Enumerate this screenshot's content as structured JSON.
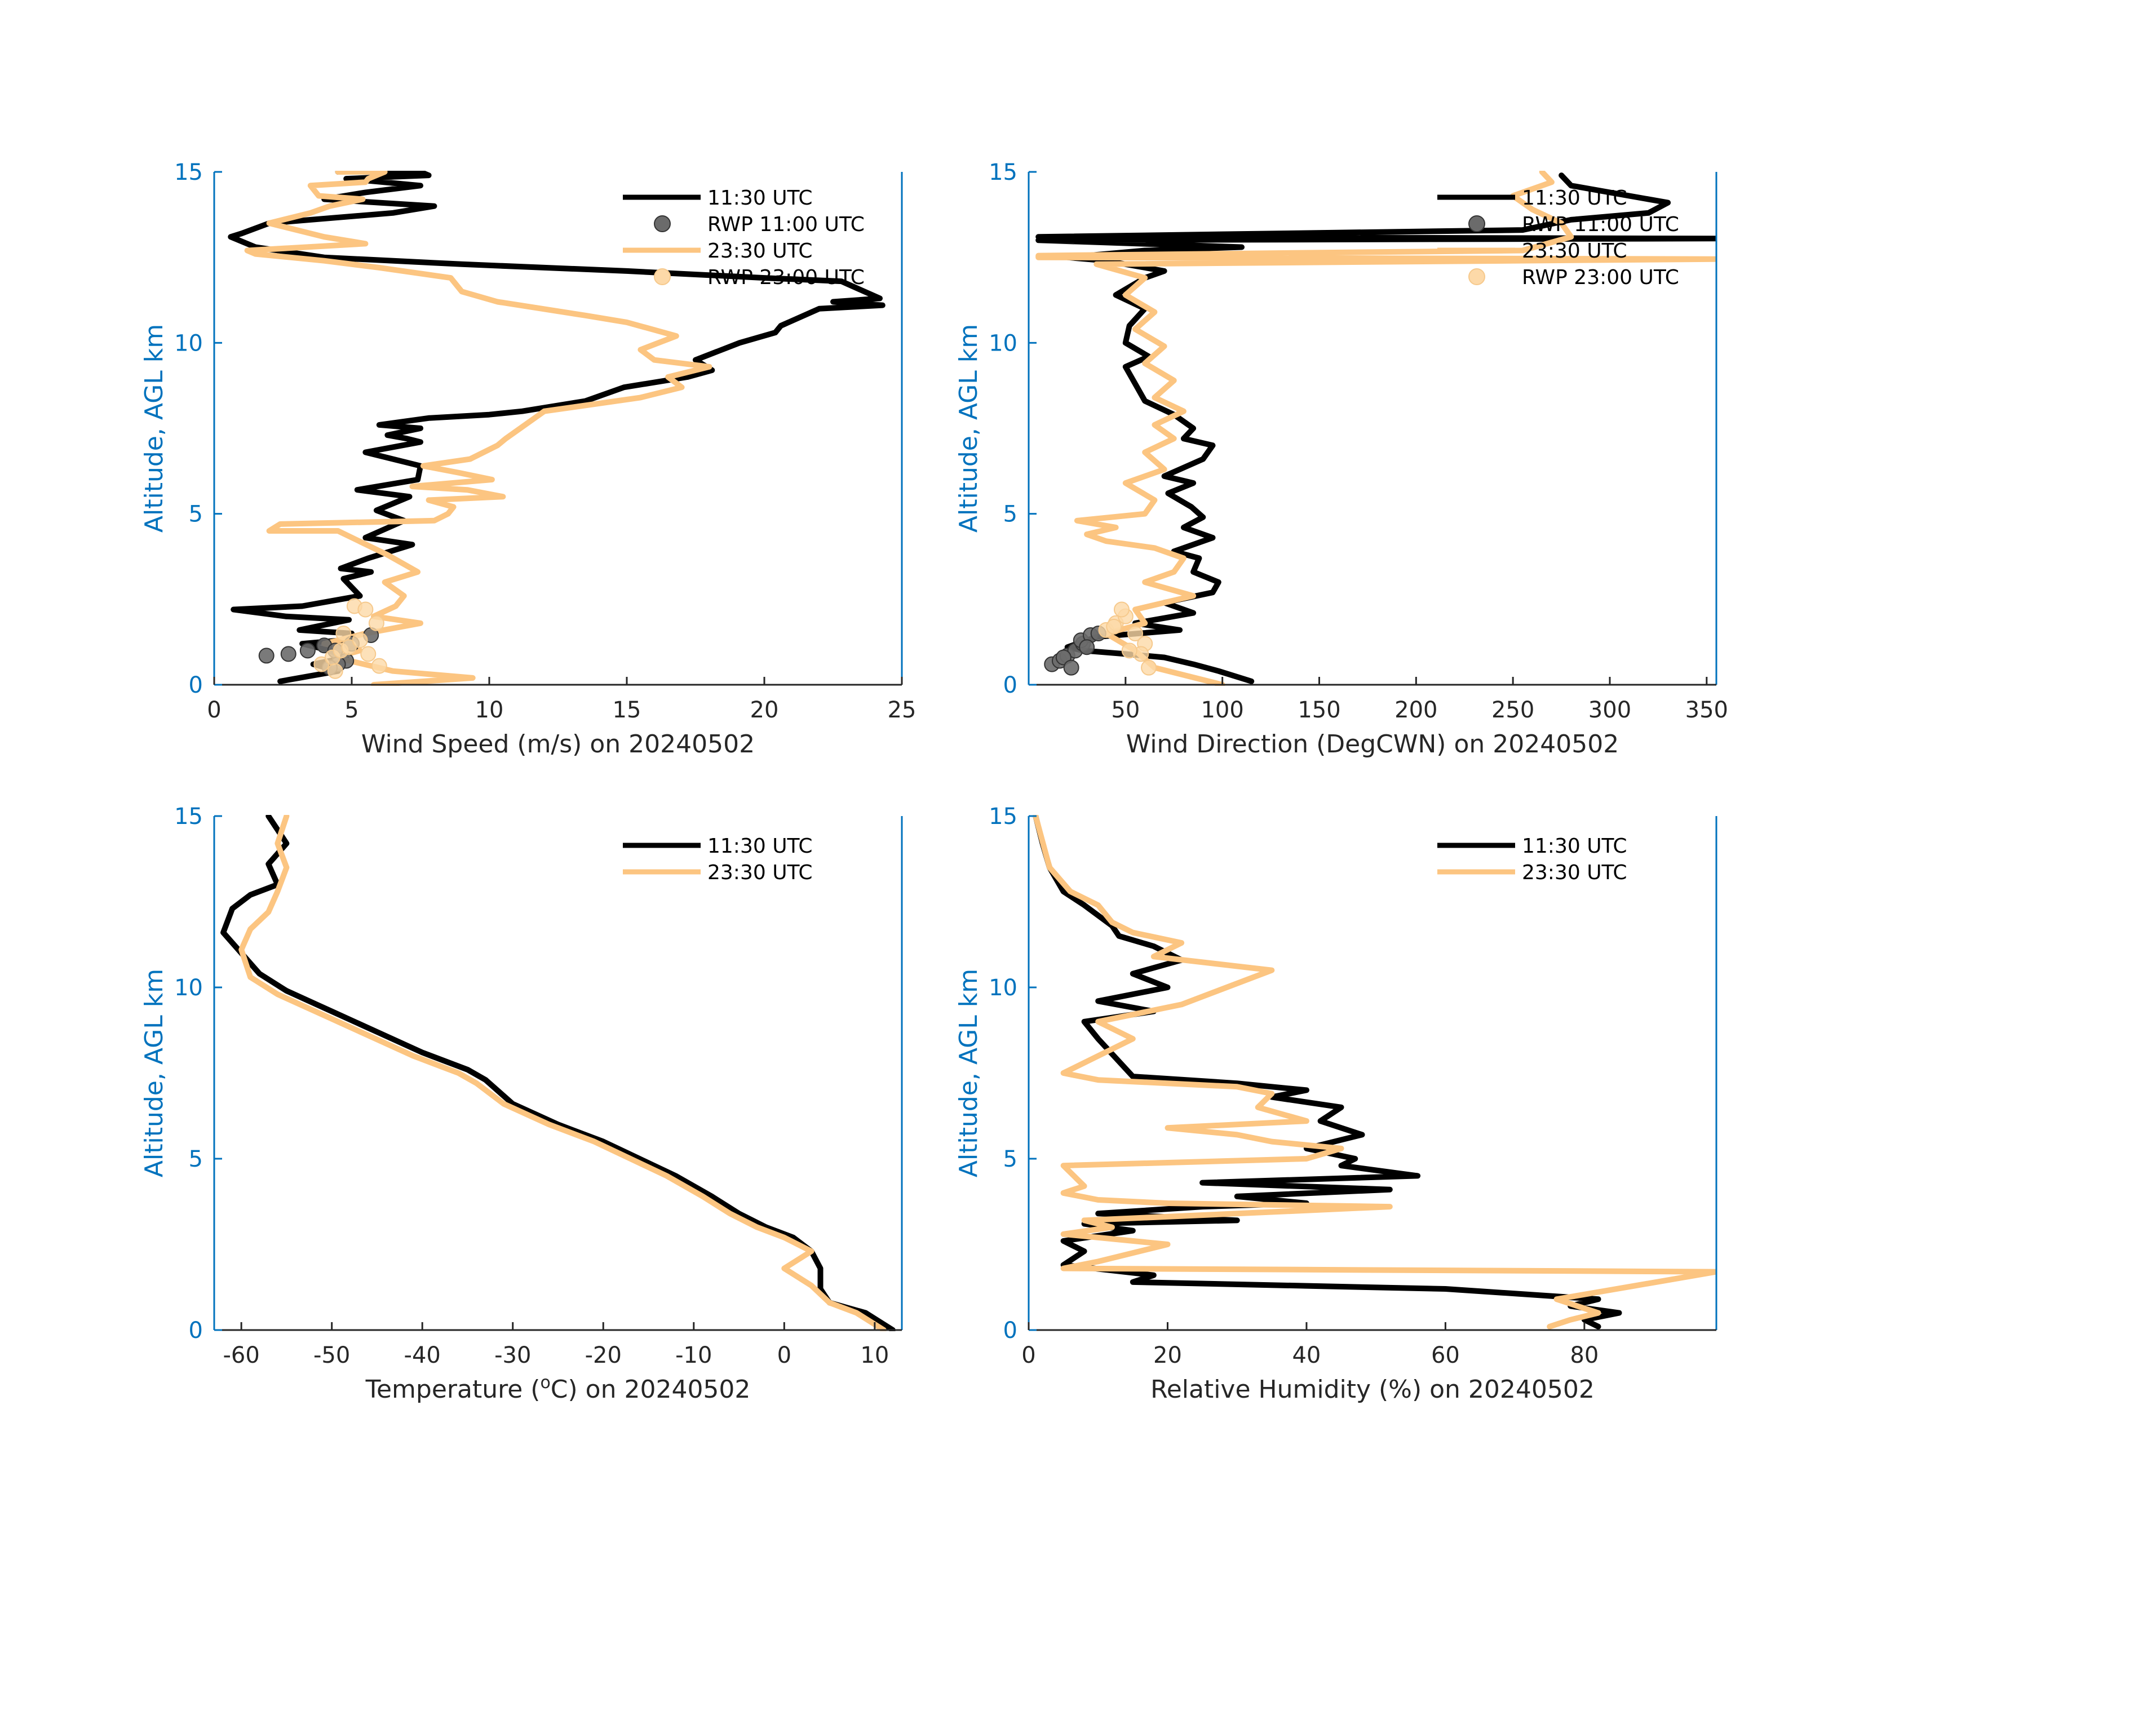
{
  "colors": {
    "background": "#ffffff",
    "axis_blue": "#0072bd",
    "axis_dark": "#262626",
    "series_1130": "#000000",
    "series_2330": "#fcc581",
    "rwp_1100": "#6b6b6b",
    "rwp_2300": "#fdd9a8"
  },
  "chart_data": [
    {
      "type": "line",
      "xlabel": "Wind Speed (m/s) on 20240502",
      "ylabel": "Altitude, AGL km",
      "xlim": [
        0,
        25
      ],
      "ylim": [
        0,
        15
      ],
      "xticks": [
        0,
        5,
        10,
        15,
        20,
        25
      ],
      "xtick_labels": [
        "0",
        "5",
        "10",
        "15",
        "20",
        "25"
      ],
      "yticks": [
        0,
        5,
        10,
        15
      ],
      "ytick_labels": [
        "0",
        "5",
        "10",
        "15"
      ],
      "legend_position": "top-right",
      "legend": [
        "11:30 UTC",
        "RWP 11:00 UTC",
        "23:30 UTC",
        "RWP 23:00 UTC"
      ],
      "series": [
        {
          "name": "11:30 UTC",
          "color": "#000000",
          "x": [
            2.4,
            4.5,
            3.6,
            4.8,
            4.2,
            3.2,
            4.6,
            5.0,
            3.1,
            4.9,
            2.6,
            0.7,
            3.2,
            5.3,
            4.7,
            5.7,
            4.6,
            5.6,
            7.2,
            5.5,
            6.9,
            5.9,
            7.1,
            5.2,
            7.4,
            7.5,
            5.5,
            7.5,
            7.0,
            6.3,
            7.5,
            6.0,
            7.8,
            10.0,
            11.2,
            13.5,
            14.9,
            17.2,
            18.1,
            17.5,
            19.1,
            20.4,
            20.6,
            22.0,
            24.3,
            22.5,
            24.2,
            22.8,
            20.0,
            15.0,
            9.0,
            4.0,
            1.5,
            0.6,
            1.0,
            2.0,
            6.5,
            8.0,
            4.0,
            5.5,
            7.5,
            4.8,
            7.8,
            7.5,
            4.5
          ],
          "y": [
            0.1,
            0.4,
            0.6,
            0.8,
            1.0,
            1.2,
            1.3,
            1.5,
            1.6,
            1.9,
            2.0,
            2.2,
            2.3,
            2.6,
            3.1,
            3.3,
            3.4,
            3.7,
            4.1,
            4.3,
            4.8,
            5.1,
            5.5,
            5.7,
            6.0,
            6.4,
            6.8,
            7.1,
            7.2,
            7.3,
            7.5,
            7.6,
            7.8,
            7.9,
            8.0,
            8.3,
            8.7,
            9.0,
            9.2,
            9.5,
            10.0,
            10.3,
            10.5,
            11.0,
            11.1,
            11.2,
            11.3,
            11.8,
            11.9,
            12.1,
            12.3,
            12.5,
            12.8,
            13.1,
            13.2,
            13.5,
            13.8,
            14.0,
            14.2,
            14.4,
            14.6,
            14.8,
            14.9,
            15.0,
            15.0
          ]
        },
        {
          "name": "23:30 UTC",
          "color": "#fcc581",
          "x": [
            5.8,
            9.4,
            6.5,
            4.4,
            5.3,
            4.0,
            5.5,
            7.5,
            5.8,
            6.6,
            6.9,
            6.2,
            7.4,
            6.3,
            4.5,
            2.0,
            2.4,
            8.0,
            8.5,
            8.7,
            7.8,
            10.5,
            9.2,
            7.2,
            10.1,
            8.9,
            7.6,
            9.3,
            10.3,
            10.6,
            12.0,
            15.5,
            17.0,
            16.5,
            18.0,
            16.0,
            15.5,
            16.8,
            15.0,
            13.5,
            10.3,
            9.0,
            8.6,
            6.0,
            4.0,
            1.5,
            1.2,
            5.5,
            4.0,
            2.0,
            3.5,
            4.2,
            5.4,
            3.8,
            3.5,
            5.5,
            5.6,
            6.2,
            4.5
          ],
          "y": [
            0.0,
            0.2,
            0.4,
            0.8,
            1.0,
            1.2,
            1.5,
            1.8,
            2.0,
            2.3,
            2.6,
            3.0,
            3.3,
            3.8,
            4.5,
            4.5,
            4.7,
            4.8,
            5.0,
            5.2,
            5.4,
            5.5,
            5.7,
            5.8,
            6.0,
            6.2,
            6.4,
            6.6,
            7.0,
            7.2,
            8.0,
            8.4,
            8.7,
            9.0,
            9.3,
            9.5,
            9.8,
            10.2,
            10.6,
            10.8,
            11.2,
            11.5,
            11.9,
            12.2,
            12.4,
            12.6,
            12.7,
            12.9,
            13.1,
            13.5,
            13.8,
            14.0,
            14.2,
            14.3,
            14.6,
            14.7,
            14.8,
            15.0,
            15.0
          ]
        }
      ],
      "scatter": [
        {
          "name": "RWP 11:00 UTC",
          "color": "#6b6b6b",
          "x": [
            1.9,
            2.7,
            3.4,
            4.0,
            4.4,
            4.8,
            5.0,
            5.7,
            4.5,
            4.2
          ],
          "y": [
            0.85,
            0.9,
            1.0,
            1.15,
            1.0,
            0.7,
            1.2,
            1.45,
            0.6,
            0.5
          ]
        },
        {
          "name": "RWP 23:00 UTC",
          "color": "#fdd9a8",
          "x": [
            3.9,
            4.3,
            4.6,
            4.9,
            5.3,
            5.6,
            6.0,
            5.1,
            4.7,
            5.5,
            5.9,
            4.4
          ],
          "y": [
            0.6,
            0.8,
            1.0,
            1.1,
            1.3,
            0.9,
            0.55,
            2.3,
            1.5,
            2.2,
            1.8,
            0.4
          ]
        }
      ]
    },
    {
      "type": "line",
      "xlabel": "Wind Direction (DegCWN) on 20240502",
      "ylabel": "Altitude, AGL km",
      "xlim": [
        0,
        355
      ],
      "ylim": [
        0,
        15
      ],
      "xticks": [
        50,
        100,
        150,
        200,
        250,
        300,
        350
      ],
      "xtick_labels": [
        "50",
        "100",
        "150",
        "200",
        "250",
        "300",
        "350"
      ],
      "yticks": [
        0,
        5,
        10,
        15
      ],
      "ytick_labels": [
        "0",
        "5",
        "10",
        "15"
      ],
      "legend_position": "top-right",
      "legend": [
        "11:30 UTC",
        "RWP 11:00 UTC",
        "23:30 UTC",
        "RWP 23:00 UTC"
      ],
      "series": [
        {
          "name": "11:30 UTC",
          "color": "#000000",
          "x": [
            115,
            98,
            85,
            70,
            50,
            28,
            20,
            35,
            78,
            55,
            85,
            70,
            95,
            98,
            85,
            88,
            75,
            95,
            80,
            90,
            84,
            72,
            85,
            70,
            90,
            95,
            80,
            85,
            75,
            60,
            55,
            50,
            62,
            50,
            52,
            60,
            45,
            60,
            70,
            50,
            40,
            20,
            60,
            110,
            5,
            355,
            5,
            255,
            280,
            320,
            330,
            300,
            280,
            275
          ],
          "y": [
            0.1,
            0.4,
            0.6,
            0.8,
            0.9,
            1.0,
            1.1,
            1.4,
            1.6,
            1.8,
            2.1,
            2.4,
            2.7,
            3.0,
            3.3,
            3.7,
            3.9,
            4.3,
            4.6,
            4.9,
            5.2,
            5.6,
            5.9,
            6.1,
            6.6,
            7.0,
            7.2,
            7.5,
            7.9,
            8.3,
            8.8,
            9.3,
            9.6,
            10.0,
            10.5,
            11.0,
            11.4,
            11.9,
            12.1,
            12.3,
            12.4,
            12.5,
            12.7,
            12.8,
            13.0,
            13.05,
            13.1,
            13.3,
            13.6,
            13.8,
            14.1,
            14.4,
            14.6,
            14.9
          ]
        },
        {
          "name": "23:30 UTC",
          "color": "#fcc581",
          "x": [
            100,
            65,
            55,
            40,
            60,
            55,
            85,
            60,
            75,
            80,
            65,
            40,
            30,
            45,
            25,
            60,
            65,
            50,
            70,
            60,
            75,
            65,
            80,
            65,
            75,
            60,
            70,
            55,
            65,
            50,
            60,
            35,
            355,
            5,
            5,
            255,
            280,
            275,
            260,
            250,
            270,
            265
          ],
          "y": [
            0.0,
            0.5,
            1.0,
            1.5,
            1.8,
            2.2,
            2.6,
            3.0,
            3.3,
            3.7,
            4.0,
            4.2,
            4.4,
            4.6,
            4.8,
            5.0,
            5.4,
            5.9,
            6.3,
            6.8,
            7.2,
            7.6,
            8.0,
            8.4,
            8.9,
            9.4,
            9.9,
            10.4,
            10.9,
            11.4,
            11.9,
            12.3,
            12.45,
            12.5,
            12.55,
            12.7,
            13.1,
            13.5,
            13.9,
            14.3,
            14.7,
            15.0
          ]
        }
      ],
      "scatter": [
        {
          "name": "RWP 11:00 UTC",
          "color": "#6b6b6b",
          "x": [
            12,
            16,
            20,
            24,
            28,
            27,
            32,
            36,
            30,
            18,
            22
          ],
          "y": [
            0.6,
            0.7,
            0.85,
            1.0,
            1.2,
            1.3,
            1.45,
            1.5,
            1.1,
            0.8,
            0.5
          ]
        },
        {
          "name": "RWP 23:00 UTC",
          "color": "#fdd9a8",
          "x": [
            40,
            45,
            50,
            55,
            60,
            58,
            48,
            52,
            44,
            62
          ],
          "y": [
            1.6,
            1.8,
            2.0,
            1.5,
            1.2,
            0.9,
            2.2,
            1.0,
            1.7,
            0.5
          ]
        }
      ]
    },
    {
      "type": "line",
      "xlabel_prefix": "Temperature (",
      "xlabel_sup": "o",
      "xlabel_suffix": "C) on 20240502",
      "ylabel": "Altitude, AGL km",
      "xlim": [
        -63,
        13
      ],
      "ylim": [
        0,
        15
      ],
      "xticks": [
        -60,
        -50,
        -40,
        -30,
        -20,
        -10,
        0,
        10
      ],
      "xtick_labels": [
        "-60",
        "-50",
        "-40",
        "-30",
        "-20",
        "-10",
        "0",
        "10"
      ],
      "yticks": [
        0,
        5,
        10,
        15
      ],
      "ytick_labels": [
        "0",
        "5",
        "10",
        "15"
      ],
      "legend_position": "top-right",
      "legend": [
        "11:30 UTC",
        "23:30 UTC"
      ],
      "series": [
        {
          "name": "11:30 UTC",
          "color": "#000000",
          "x": [
            12,
            9,
            5,
            4,
            4,
            3,
            1,
            -2,
            -5,
            -8,
            -12,
            -16,
            -20,
            -25,
            -30,
            -33,
            -35,
            -40,
            -45,
            -50,
            -55,
            -58,
            -60,
            -62,
            -61,
            -59,
            -56,
            -57,
            -55,
            -56,
            -57
          ],
          "y": [
            0.0,
            0.5,
            0.8,
            1.2,
            1.8,
            2.3,
            2.7,
            3.0,
            3.4,
            3.9,
            4.5,
            5.0,
            5.5,
            6.0,
            6.6,
            7.3,
            7.6,
            8.1,
            8.7,
            9.3,
            9.9,
            10.4,
            11.0,
            11.6,
            12.3,
            12.7,
            13.0,
            13.6,
            14.2,
            14.6,
            15.0
          ]
        },
        {
          "name": "23:30 UTC",
          "color": "#fcc581",
          "x": [
            11,
            8,
            5,
            3,
            0,
            3,
            0,
            -3,
            -6,
            -9,
            -13,
            -17,
            -21,
            -26,
            -31,
            -34,
            -36,
            -41,
            -46,
            -51,
            -56,
            -59,
            -60,
            -59,
            -57,
            -56,
            -55,
            -56,
            -55
          ],
          "y": [
            0.0,
            0.5,
            0.8,
            1.3,
            1.8,
            2.3,
            2.7,
            3.0,
            3.4,
            3.9,
            4.5,
            5.0,
            5.5,
            6.0,
            6.6,
            7.2,
            7.5,
            8.0,
            8.6,
            9.2,
            9.8,
            10.3,
            11.1,
            11.7,
            12.2,
            12.8,
            13.5,
            14.2,
            15.0
          ]
        }
      ]
    },
    {
      "type": "line",
      "xlabel": "Relative Humidity (%) on 20240502",
      "ylabel": "Altitude, AGL km",
      "xlim": [
        0,
        99
      ],
      "ylim": [
        0,
        15
      ],
      "xticks": [
        0,
        20,
        40,
        60,
        80
      ],
      "xtick_labels": [
        "0",
        "20",
        "40",
        "60",
        "80"
      ],
      "yticks": [
        0,
        5,
        10,
        15
      ],
      "ytick_labels": [
        "0",
        "5",
        "10",
        "15"
      ],
      "legend_position": "top-right",
      "legend": [
        "11:30 UTC",
        "23:30 UTC"
      ],
      "series": [
        {
          "name": "11:30 UTC",
          "color": "#000000",
          "x": [
            82,
            80,
            85,
            78,
            82,
            60,
            15,
            18,
            5,
            8,
            5,
            15,
            8,
            30,
            10,
            25,
            40,
            30,
            52,
            25,
            56,
            45,
            47,
            40,
            48,
            42,
            45,
            35,
            40,
            30,
            15,
            10,
            8,
            18,
            10,
            20,
            15,
            22,
            18,
            13,
            12,
            8,
            5,
            3,
            2,
            1
          ],
          "y": [
            0.1,
            0.3,
            0.5,
            0.7,
            0.9,
            1.2,
            1.4,
            1.6,
            1.9,
            2.3,
            2.6,
            2.9,
            3.1,
            3.2,
            3.4,
            3.6,
            3.7,
            3.9,
            4.1,
            4.3,
            4.5,
            4.8,
            5.0,
            5.3,
            5.7,
            6.1,
            6.5,
            6.8,
            7.0,
            7.2,
            7.4,
            8.5,
            9.0,
            9.3,
            9.6,
            10.0,
            10.4,
            10.8,
            11.2,
            11.5,
            11.8,
            12.4,
            12.8,
            13.5,
            14.2,
            15.0
          ]
        },
        {
          "name": "23:30 UTC",
          "color": "#fcc581",
          "x": [
            75,
            78,
            82,
            76,
            99,
            5,
            10,
            20,
            5,
            12,
            8,
            30,
            52,
            20,
            10,
            5,
            8,
            5,
            40,
            45,
            35,
            30,
            20,
            40,
            33,
            35,
            30,
            20,
            10,
            5,
            15,
            10,
            22,
            35,
            18,
            22,
            15,
            12,
            10,
            6,
            3,
            1
          ],
          "y": [
            0.1,
            0.3,
            0.5,
            0.9,
            1.7,
            1.8,
            2.0,
            2.5,
            2.8,
            3.0,
            3.2,
            3.4,
            3.6,
            3.7,
            3.8,
            4.0,
            4.2,
            4.8,
            5.0,
            5.3,
            5.5,
            5.7,
            5.9,
            6.1,
            6.5,
            6.9,
            7.1,
            7.2,
            7.3,
            7.5,
            8.5,
            9.0,
            9.5,
            10.5,
            10.9,
            11.3,
            11.6,
            11.9,
            12.4,
            12.8,
            13.5,
            15.0
          ]
        }
      ]
    }
  ]
}
